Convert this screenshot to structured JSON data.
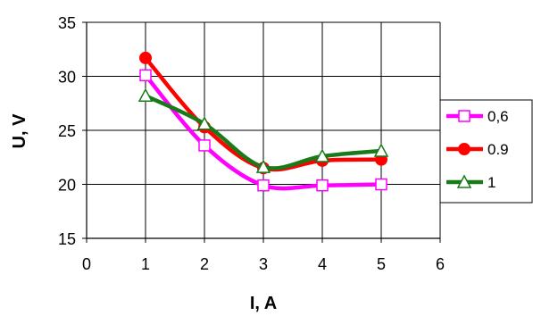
{
  "chart_data": {
    "type": "line",
    "title": "",
    "xlabel": "I, A",
    "ylabel": "U, V",
    "xlim": [
      0,
      6
    ],
    "ylim": [
      15,
      35
    ],
    "x_ticks": [
      "0",
      "1",
      "2",
      "3",
      "4",
      "5",
      "6"
    ],
    "y_ticks": [
      "15",
      "20",
      "25",
      "30",
      "35"
    ],
    "grid": true,
    "legend_position": "right",
    "series": [
      {
        "name": "0,6",
        "color": "#ff00ff",
        "marker": "square",
        "x": [
          1,
          2,
          3,
          4,
          5
        ],
        "y": [
          30.1,
          23.6,
          19.9,
          19.9,
          20.0
        ]
      },
      {
        "name": "0.9",
        "color": "#ff0000",
        "marker": "circle",
        "x": [
          1,
          2,
          3,
          4,
          5
        ],
        "y": [
          31.7,
          25.3,
          21.5,
          22.2,
          22.3
        ]
      },
      {
        "name": "1",
        "color": "#1a7a1a",
        "marker": "triangle",
        "x": [
          1,
          2,
          3,
          4,
          5
        ],
        "y": [
          28.2,
          25.6,
          21.6,
          22.6,
          23.1
        ]
      }
    ]
  }
}
